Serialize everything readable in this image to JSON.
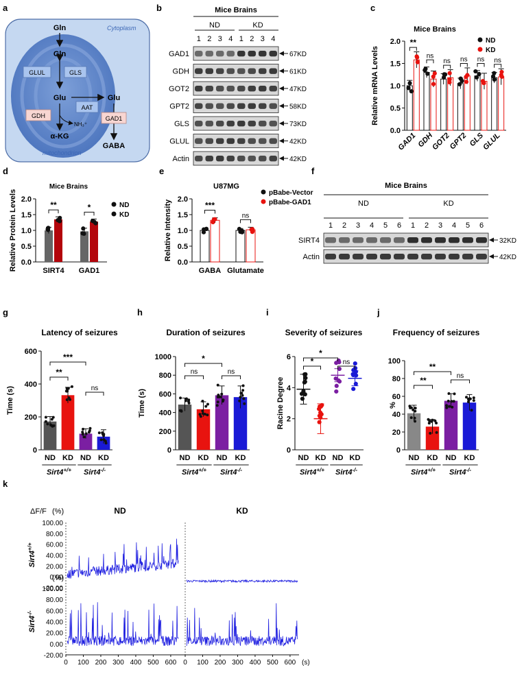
{
  "panel_labels": [
    "a",
    "b",
    "c",
    "d",
    "e",
    "f",
    "g",
    "h",
    "i",
    "j",
    "k"
  ],
  "colors": {
    "nd_dark": "#555555",
    "kd_red": "#e8130f",
    "ko_purple": "#7b1fa2",
    "ko_blue": "#1a1ad6",
    "gray_bar": "#666666",
    "dark_red": "#b3050b",
    "trace_blue": "#1f1fe0"
  },
  "panel_a": {
    "cytoplasm": "Cytoplasm",
    "mitochondrion": "mitochondrion",
    "nodes": {
      "gln_top": "Gln",
      "gln_mid": "Gln",
      "glu": "Glu",
      "glu_out": "Glu",
      "akg": "α-KG",
      "gaba": "GABA",
      "nh3": "NH₃⁺"
    },
    "enzymes": {
      "glul": "GLUL",
      "gls": "GLS",
      "aat": "AAT",
      "gdh": "GDH",
      "gad1": "GAD1"
    }
  },
  "panel_b": {
    "title": "Mice Brains",
    "groups": [
      "ND",
      "KD"
    ],
    "lanes": [
      "1",
      "2",
      "3",
      "4",
      "1",
      "2",
      "3",
      "4"
    ],
    "rows": [
      {
        "name": "GAD1",
        "size": "67KD"
      },
      {
        "name": "GDH",
        "size": "61KD"
      },
      {
        "name": "GOT2",
        "size": "47KD"
      },
      {
        "name": "GPT2",
        "size": "58KD"
      },
      {
        "name": "GLS",
        "size": "73KD"
      },
      {
        "name": "GLUL",
        "size": "42KD"
      },
      {
        "name": "Actin",
        "size": "42KD"
      }
    ]
  },
  "panel_f": {
    "title": "Mice Brains",
    "groups": [
      "ND",
      "KD"
    ],
    "lanes": [
      "1",
      "2",
      "3",
      "4",
      "5",
      "6",
      "1",
      "2",
      "3",
      "4",
      "5",
      "6"
    ],
    "rows": [
      {
        "name": "SIRT4",
        "size": "32KD"
      },
      {
        "name": "Actin",
        "size": "42KD"
      }
    ]
  },
  "chart_data": [
    {
      "id": "c",
      "type": "bar",
      "title": "Mice Brains",
      "ylabel": "Relative mRNA Levels",
      "ylim": [
        0,
        2.0
      ],
      "yticks": [
        "0.0",
        "0.5",
        "1.0",
        "1.5",
        "2.0"
      ],
      "categories": [
        "GAD1",
        "GDH",
        "GOT2",
        "GPT2",
        "GLS",
        "GLUL"
      ],
      "series": [
        {
          "name": "ND",
          "values": [
            1.0,
            1.3,
            1.15,
            1.05,
            1.22,
            1.18
          ]
        },
        {
          "name": "KD",
          "values": [
            1.58,
            1.15,
            1.18,
            1.22,
            1.1,
            1.2
          ]
        }
      ],
      "significance": [
        "**",
        "ns",
        "ns",
        "ns",
        "ns",
        "ns"
      ]
    },
    {
      "id": "d",
      "type": "bar",
      "title": "Mice Brains",
      "ylabel": "Relative Protein Levels",
      "ylim": [
        0,
        2.0
      ],
      "yticks": [
        "0.0",
        "0.5",
        "1.0",
        "1.5",
        "2.0"
      ],
      "categories": [
        "SIRT4",
        "GAD1"
      ],
      "series": [
        {
          "name": "ND",
          "values": [
            1.0,
            0.97
          ]
        },
        {
          "name": "KD",
          "values": [
            1.35,
            1.28
          ]
        }
      ],
      "significance": [
        "**",
        "*"
      ]
    },
    {
      "id": "e",
      "type": "bar",
      "title": "U87MG",
      "ylabel": "Relative Intensity",
      "ylim": [
        0,
        2.0
      ],
      "yticks": [
        "0.0",
        "0.5",
        "1.0",
        "1.5",
        "2.0"
      ],
      "categories": [
        "GABA",
        "Glutamate"
      ],
      "series": [
        {
          "name": "pBabe-Vector",
          "values": [
            1.0,
            1.0
          ]
        },
        {
          "name": "pBabe-GAD1",
          "values": [
            1.32,
            1.02
          ]
        }
      ],
      "significance": [
        "***",
        "ns"
      ]
    },
    {
      "id": "g",
      "type": "bar",
      "title": "Latency of seizures",
      "ylabel": "Time (s)",
      "ylim": [
        0,
        600
      ],
      "yticks": [
        "0",
        "200",
        "400",
        "600"
      ],
      "categories": [
        "ND",
        "KD",
        "ND",
        "KD"
      ],
      "groups": [
        "Sirt4+/+",
        "Sirt4-/-"
      ],
      "values": [
        172,
        332,
        98,
        80
      ],
      "significance": [
        {
          "pair": [
            0,
            1
          ],
          "label": "**"
        },
        {
          "pair": [
            0,
            2
          ],
          "label": "***"
        },
        {
          "pair": [
            2,
            3
          ],
          "label": "ns"
        }
      ]
    },
    {
      "id": "h",
      "type": "bar",
      "title": "Duration of seizures",
      "ylabel": "Time (s)",
      "ylim": [
        0,
        1000
      ],
      "yticks": [
        "0",
        "200",
        "400",
        "600",
        "800",
        "1000"
      ],
      "categories": [
        "ND",
        "KD",
        "ND",
        "KD"
      ],
      "groups": [
        "Sirt4+/+",
        "Sirt4-/-"
      ],
      "values": [
        485,
        435,
        585,
        565
      ],
      "significance": [
        {
          "pair": [
            0,
            1
          ],
          "label": "ns"
        },
        {
          "pair": [
            0,
            2
          ],
          "label": "*"
        },
        {
          "pair": [
            2,
            3
          ],
          "label": "ns"
        }
      ]
    },
    {
      "id": "i",
      "type": "scatter",
      "title": "Severity of seizures",
      "ylabel": "Racine Degree",
      "ylim": [
        0,
        6
      ],
      "yticks": [
        "0",
        "2",
        "4",
        "6"
      ],
      "categories": [
        "ND",
        "KD",
        "ND",
        "KD"
      ],
      "groups": [
        "Sirt4+/+",
        "Sirt4-/-"
      ],
      "values": [
        3.9,
        2.0,
        4.8,
        4.6
      ],
      "significance": [
        {
          "pair": [
            0,
            1
          ],
          "label": "*"
        },
        {
          "pair": [
            0,
            2
          ],
          "label": "*"
        },
        {
          "pair": [
            2,
            3
          ],
          "label": "ns"
        }
      ]
    },
    {
      "id": "j",
      "type": "bar",
      "title": "Frequency of seizures",
      "ylabel": "%",
      "ylim": [
        0,
        100
      ],
      "yticks": [
        "0",
        "20",
        "40",
        "60",
        "80",
        "100"
      ],
      "categories": [
        "ND",
        "KD",
        "ND",
        "KD"
      ],
      "groups": [
        "Sirt4+/+",
        "Sirt4-/-"
      ],
      "values": [
        41,
        26,
        55,
        53
      ],
      "significance": [
        {
          "pair": [
            0,
            1
          ],
          "label": "**"
        },
        {
          "pair": [
            0,
            2
          ],
          "label": "**"
        },
        {
          "pair": [
            2,
            3
          ],
          "label": "ns"
        }
      ]
    },
    {
      "id": "k",
      "type": "line",
      "ylabel": "ΔF/F",
      "yunit": "(%)",
      "ylim": [
        -20,
        100
      ],
      "yticks": [
        "100.00",
        "80.00",
        "60.00",
        "40.00",
        "20.00",
        "0.00",
        "-20.00"
      ],
      "xticks": [
        "0",
        "100",
        "200",
        "300",
        "400",
        "500",
        "600"
      ],
      "xunit": "(s)",
      "xlim": [
        0,
        620
      ],
      "columns": [
        "ND",
        "KD"
      ],
      "rows": [
        "Sirt4+/+",
        "Sirt4-/-"
      ]
    }
  ]
}
